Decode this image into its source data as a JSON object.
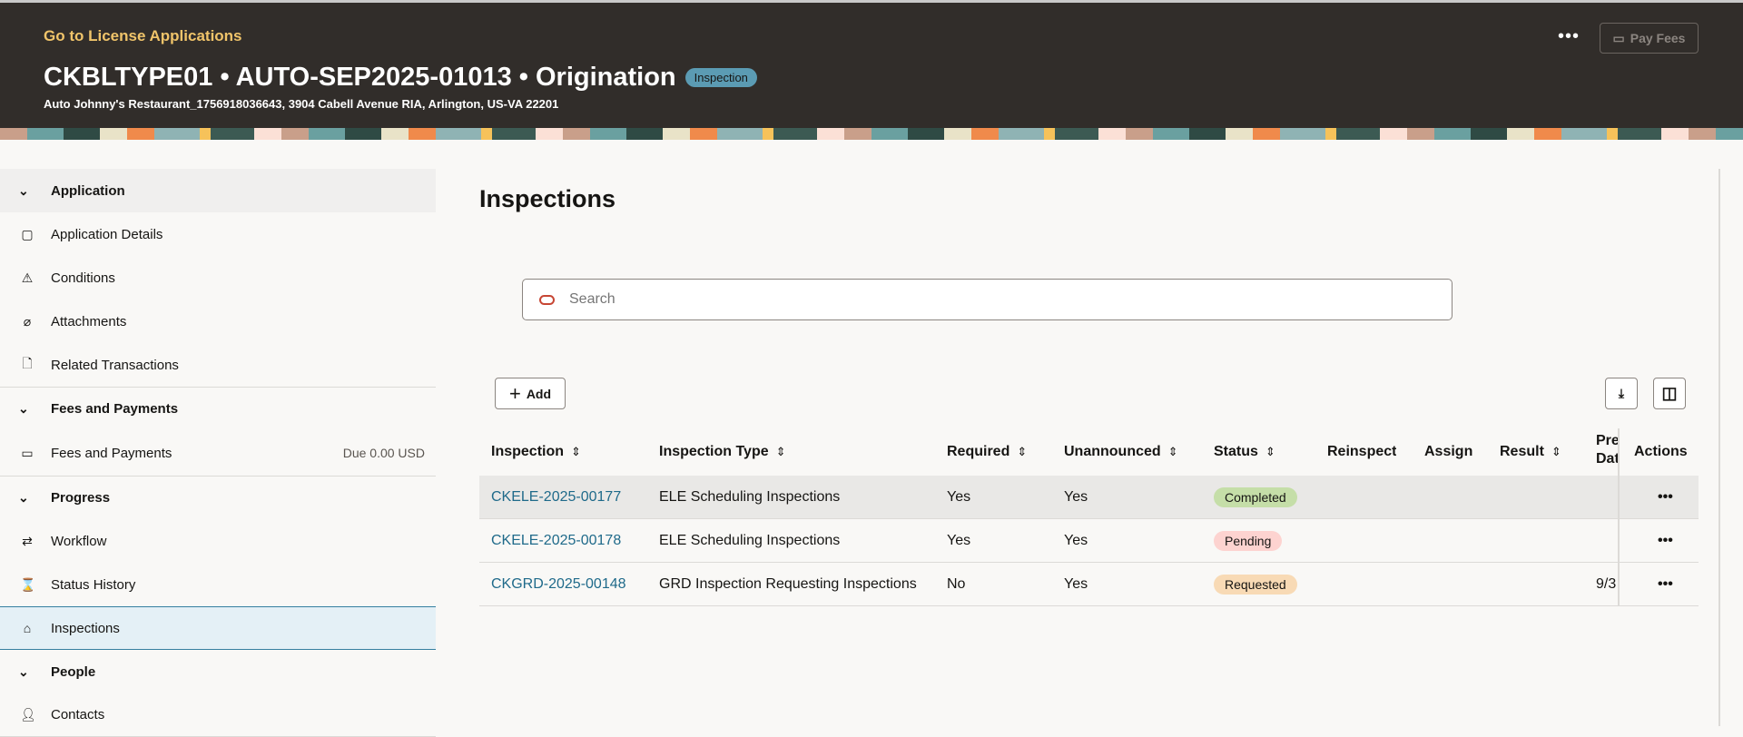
{
  "header": {
    "back_link": "Go to License Applications",
    "title": "CKBLTYPE01 • AUTO-SEP2025-01013 • Origination",
    "status_badge": "Inspection",
    "subtitle": "Auto Johnny's Restaurant_1756918036643, 3904 Cabell Avenue RIA, Arlington, US-VA 22201",
    "more": "•••",
    "pay_fees": "Pay Fees"
  },
  "sidebar": {
    "sections": [
      {
        "label": "Application",
        "items": [
          {
            "label": "Application Details",
            "icon": "clipboard-icon"
          },
          {
            "label": "Conditions",
            "icon": "warning-icon"
          },
          {
            "label": "Attachments",
            "icon": "paperclip-icon"
          },
          {
            "label": "Related Transactions",
            "icon": "document-link-icon"
          }
        ]
      },
      {
        "label": "Fees and Payments",
        "items": [
          {
            "label": "Fees and Payments",
            "icon": "wallet-icon",
            "due": "Due 0.00 USD"
          }
        ]
      },
      {
        "label": "Progress",
        "items": [
          {
            "label": "Workflow",
            "icon": "workflow-icon"
          },
          {
            "label": "Status History",
            "icon": "hourglass-icon"
          },
          {
            "label": "Inspections",
            "icon": "inspection-icon",
            "selected": true
          }
        ]
      },
      {
        "label": "People",
        "items": [
          {
            "label": "Contacts",
            "icon": "person-icon"
          }
        ]
      }
    ]
  },
  "main": {
    "title": "Inspections",
    "search_placeholder": "Search",
    "add_label": "Add",
    "columns": [
      "Inspection",
      "Inspection Type",
      "Required",
      "Unannounced",
      "Status",
      "Reinspect",
      "Assign",
      "Result",
      "Pre Dat",
      "Actions"
    ],
    "rows": [
      {
        "id": "CKELE-2025-00177",
        "type": "ELE Scheduling Inspections",
        "required": "Yes",
        "unannounced": "Yes",
        "status": "Completed",
        "status_color": "#c5dea8",
        "pre": "",
        "actions": "•••"
      },
      {
        "id": "CKELE-2025-00178",
        "type": "ELE Scheduling Inspections",
        "required": "Yes",
        "unannounced": "Yes",
        "status": "Pending",
        "status_color": "#fdd3d0",
        "pre": "",
        "actions": "•••"
      },
      {
        "id": "CKGRD-2025-00148",
        "type": "GRD Inspection Requesting Inspections",
        "required": "No",
        "unannounced": "Yes",
        "status": "Requested",
        "status_color": "#f8dab5",
        "pre": "9/3",
        "actions": "•••"
      }
    ]
  }
}
